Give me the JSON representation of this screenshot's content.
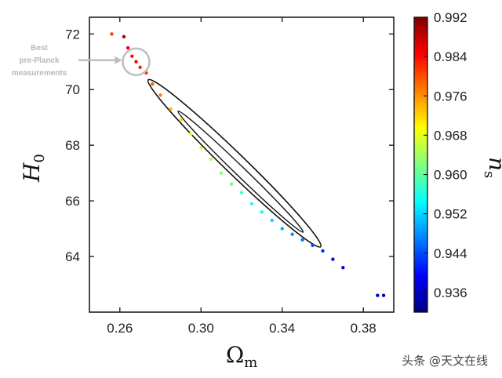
{
  "chart_data": {
    "type": "scatter",
    "xlabel": "Ω",
    "xlabel_sub": "m",
    "ylabel": "H",
    "ylabel_sub": "0",
    "colorbar_label": "n",
    "colorbar_label_sub": "s",
    "xlim": [
      0.245,
      0.395
    ],
    "ylim": [
      62.0,
      72.6
    ],
    "xticks": [
      0.26,
      0.3,
      0.34,
      0.38
    ],
    "xtick_labels": [
      "0.26",
      "0.30",
      "0.34",
      "0.38"
    ],
    "yticks": [
      64,
      66,
      68,
      70,
      72
    ],
    "ytick_labels": [
      "64",
      "66",
      "68",
      "70",
      "72"
    ],
    "colorbar_range": [
      0.932,
      0.992
    ],
    "colorbar_ticks": [
      0.992,
      0.984,
      0.976,
      0.968,
      0.96,
      0.952,
      0.944,
      0.936
    ],
    "colorbar_tick_labels": [
      "0.992",
      "0.984",
      "0.976",
      "0.968",
      "0.960",
      "0.952",
      "0.944",
      "0.936"
    ],
    "colormap": [
      "#00007f",
      "#0000ff",
      "#0080ff",
      "#00ffff",
      "#80ff80",
      "#ffff00",
      "#ff8000",
      "#ff0000",
      "#7f0000"
    ],
    "grid": false,
    "points": [
      {
        "x": 0.256,
        "y": 72.0,
        "c": 0.981
      },
      {
        "x": 0.262,
        "y": 71.9,
        "c": 0.99
      },
      {
        "x": 0.264,
        "y": 71.5,
        "c": 0.986
      },
      {
        "x": 0.266,
        "y": 71.2,
        "c": 0.984
      },
      {
        "x": 0.268,
        "y": 71.0,
        "c": 0.985
      },
      {
        "x": 0.27,
        "y": 70.8,
        "c": 0.983
      },
      {
        "x": 0.273,
        "y": 70.6,
        "c": 0.982
      },
      {
        "x": 0.276,
        "y": 70.2,
        "c": 0.979
      },
      {
        "x": 0.28,
        "y": 69.8,
        "c": 0.977
      },
      {
        "x": 0.285,
        "y": 69.3,
        "c": 0.974
      },
      {
        "x": 0.29,
        "y": 68.9,
        "c": 0.972
      },
      {
        "x": 0.295,
        "y": 68.4,
        "c": 0.969
      },
      {
        "x": 0.3,
        "y": 67.9,
        "c": 0.967
      },
      {
        "x": 0.305,
        "y": 67.5,
        "c": 0.965
      },
      {
        "x": 0.31,
        "y": 67.0,
        "c": 0.963
      },
      {
        "x": 0.315,
        "y": 66.6,
        "c": 0.961
      },
      {
        "x": 0.32,
        "y": 66.3,
        "c": 0.958
      },
      {
        "x": 0.325,
        "y": 65.9,
        "c": 0.956
      },
      {
        "x": 0.33,
        "y": 65.6,
        "c": 0.955
      },
      {
        "x": 0.335,
        "y": 65.3,
        "c": 0.952
      },
      {
        "x": 0.34,
        "y": 65.0,
        "c": 0.95
      },
      {
        "x": 0.345,
        "y": 64.8,
        "c": 0.948
      },
      {
        "x": 0.35,
        "y": 64.6,
        "c": 0.946
      },
      {
        "x": 0.355,
        "y": 64.4,
        "c": 0.944
      },
      {
        "x": 0.36,
        "y": 64.2,
        "c": 0.942
      },
      {
        "x": 0.365,
        "y": 63.9,
        "c": 0.94
      },
      {
        "x": 0.37,
        "y": 63.6,
        "c": 0.938
      },
      {
        "x": 0.387,
        "y": 62.6,
        "c": 0.936
      },
      {
        "x": 0.39,
        "y": 62.6,
        "c": 0.935
      }
    ],
    "annotation": {
      "lines": [
        "Best",
        "pre-Planck",
        "measurements"
      ],
      "x": 0.268,
      "y": 71.0
    }
  },
  "watermark": "头条 @天文在线"
}
